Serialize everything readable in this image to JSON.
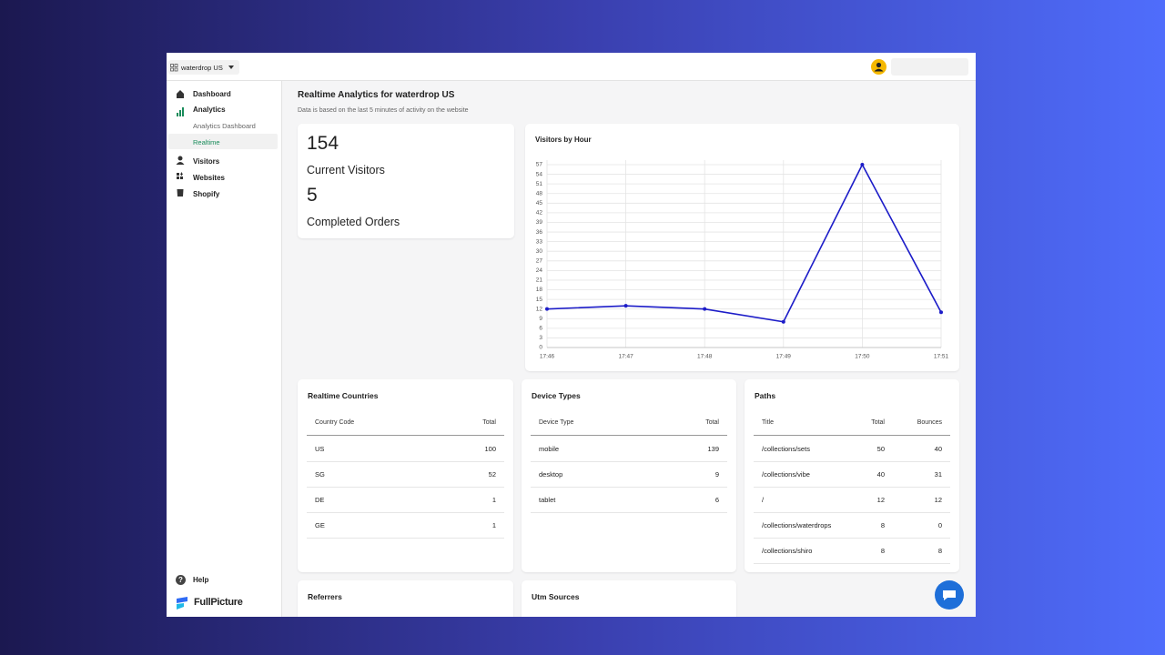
{
  "topbar": {
    "store": "waterdrop US"
  },
  "sidebar": {
    "items": [
      "Dashboard",
      "Analytics",
      "Visitors",
      "Websites",
      "Shopify"
    ],
    "sub_items": [
      "Analytics Dashboard",
      "Realtime"
    ],
    "help": "Help",
    "brand": "FullPicture"
  },
  "page": {
    "title": "Realtime Analytics for waterdrop US",
    "subtitle": "Data is based on the last 5 minutes of activity on the website"
  },
  "stats": [
    {
      "value": 154,
      "label": "Current Visitors"
    },
    {
      "value": 5,
      "label": "Completed Orders"
    }
  ],
  "chart_data": {
    "type": "line",
    "title": "Visitors by Hour",
    "categories": [
      "17:46",
      "17:47",
      "17:48",
      "17:49",
      "17:50",
      "17:51"
    ],
    "values": [
      12,
      13,
      12,
      8,
      57,
      11
    ],
    "color": "#1c1cc8",
    "ylim": [
      0,
      57
    ],
    "yticks": [
      0,
      3,
      6,
      9,
      12,
      15,
      18,
      21,
      24,
      27,
      30,
      33,
      36,
      39,
      42,
      45,
      48,
      51,
      54,
      57
    ],
    "grid": true
  },
  "tables": [
    {
      "title": "Realtime Countries",
      "columns": [
        "Country Code",
        "Total"
      ],
      "rows": [
        [
          "US",
          100
        ],
        [
          "SG",
          52
        ],
        [
          "DE",
          1
        ],
        [
          "GE",
          1
        ]
      ]
    },
    {
      "title": "Device Types",
      "columns": [
        "Device Type",
        "Total"
      ],
      "rows": [
        [
          "mobile",
          139
        ],
        [
          "desktop",
          9
        ],
        [
          "tablet",
          6
        ]
      ]
    },
    {
      "title": "Paths",
      "columns": [
        "Title",
        "Total",
        "Bounces"
      ],
      "rows": [
        [
          "/collections/sets",
          50,
          40
        ],
        [
          "/collections/vibe",
          40,
          31
        ],
        [
          "/",
          12,
          12
        ],
        [
          "/collections/waterdrops",
          8,
          0
        ],
        [
          "/collections/shiro",
          8,
          8
        ]
      ]
    }
  ],
  "bottom_cards": [
    "Referrers",
    "Utm Sources"
  ]
}
